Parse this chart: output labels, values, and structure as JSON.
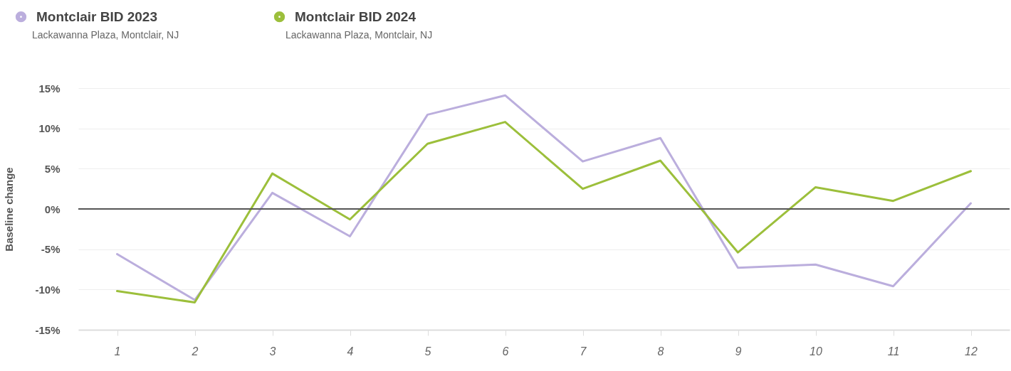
{
  "chart_data": {
    "type": "line",
    "ylabel": "Baseline change",
    "categories": [
      "1",
      "2",
      "3",
      "4",
      "5",
      "6",
      "7",
      "8",
      "9",
      "10",
      "11",
      "12"
    ],
    "series": [
      {
        "name": "Montclair BID 2023",
        "color": "#bbaedd",
        "values": [
          -5.6,
          -11.3,
          2.0,
          -3.4,
          11.7,
          14.1,
          5.9,
          8.8,
          -7.3,
          -6.9,
          -9.6,
          0.7
        ]
      },
      {
        "name": "Montclair BID 2024",
        "color": "#9cbf3b",
        "values": [
          -10.2,
          -11.6,
          4.4,
          -1.3,
          8.1,
          10.8,
          2.5,
          6.0,
          -5.4,
          2.7,
          1.0,
          4.7
        ]
      }
    ],
    "annotations": [
      "Lackawanna Plaza, Montclair, NJ",
      "Lackawanna Plaza, Montclair, NJ"
    ],
    "ref_lines": [
      {
        "axis": "y",
        "value": 0,
        "color": "#555555"
      }
    ],
    "ylim": [
      -15,
      15
    ],
    "yticks": [
      {
        "value": -15,
        "label": "-15%"
      },
      {
        "value": -10,
        "label": "-10%"
      },
      {
        "value": -5,
        "label": "-5%"
      },
      {
        "value": 0,
        "label": "0%"
      },
      {
        "value": 5,
        "label": "5%"
      },
      {
        "value": 10,
        "label": "10%"
      },
      {
        "value": 15,
        "label": "15%"
      }
    ],
    "grid": "y",
    "legend": "top left",
    "marker": "none",
    "line_style": "solid"
  }
}
